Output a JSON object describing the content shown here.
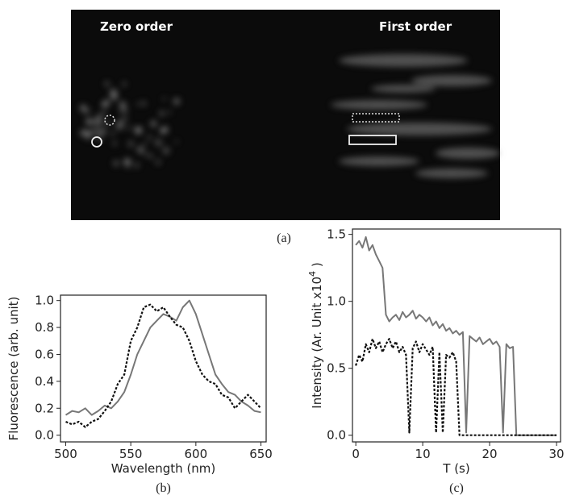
{
  "panel_a": {
    "zero_label": "Zero order",
    "first_label": "First order",
    "caption": "(a)"
  },
  "chart_data": [
    {
      "type": "line",
      "caption": "(b)",
      "xlabel": "Wavelength (nm)",
      "ylabel": "Fluorescence (arb. unit)",
      "xlim": [
        496,
        654
      ],
      "ylim": [
        -0.05,
        1.04
      ],
      "xticks": [
        500,
        550,
        600,
        650
      ],
      "yticks": [
        {
          "value": 0,
          "label": "0.0"
        },
        {
          "value": 0.2,
          "label": "0.2"
        },
        {
          "value": 0.4,
          "label": "0.4"
        },
        {
          "value": 0.6,
          "label": "0.6"
        },
        {
          "value": 0.8,
          "label": "0.8"
        },
        {
          "value": 1.0,
          "label": "1.0"
        }
      ],
      "x": [
        500,
        505,
        510,
        515,
        520,
        525,
        530,
        535,
        540,
        545,
        550,
        555,
        560,
        565,
        570,
        575,
        580,
        585,
        590,
        595,
        600,
        605,
        610,
        615,
        620,
        625,
        630,
        635,
        640,
        645,
        650
      ],
      "series": [
        {
          "color": "#777777",
          "dashed": false,
          "values": [
            0.15,
            0.18,
            0.17,
            0.2,
            0.15,
            0.18,
            0.22,
            0.2,
            0.25,
            0.32,
            0.45,
            0.6,
            0.7,
            0.8,
            0.85,
            0.9,
            0.88,
            0.85,
            0.95,
            1.0,
            0.9,
            0.75,
            0.6,
            0.45,
            0.38,
            0.32,
            0.3,
            0.25,
            0.22,
            0.18,
            0.17
          ]
        },
        {
          "color": "#111111",
          "dashed": true,
          "values": [
            0.1,
            0.08,
            0.1,
            0.06,
            0.1,
            0.12,
            0.18,
            0.25,
            0.38,
            0.45,
            0.7,
            0.8,
            0.95,
            0.97,
            0.92,
            0.95,
            0.88,
            0.82,
            0.8,
            0.7,
            0.55,
            0.45,
            0.4,
            0.38,
            0.3,
            0.28,
            0.2,
            0.25,
            0.3,
            0.25,
            0.2
          ]
        }
      ]
    },
    {
      "type": "line",
      "caption": "(c)",
      "xlabel": "T (s)",
      "ylabel": {
        "text": "Intensity (Ar. Unit x10",
        "superscript": "4",
        "suffix": " )"
      },
      "xlim": [
        -0.5,
        30.6
      ],
      "ylim": [
        -0.05,
        1.54
      ],
      "xticks": [
        0,
        10,
        20,
        30
      ],
      "yticks": [
        {
          "value": 0,
          "label": "0.0"
        },
        {
          "value": 0.5,
          "label": "0.5"
        },
        {
          "value": 1.0,
          "label": "1.0"
        },
        {
          "value": 1.5,
          "label": "1.5"
        }
      ],
      "x": [
        0,
        0.5,
        1,
        1.5,
        2,
        2.5,
        3,
        3.5,
        4,
        4.5,
        5,
        5.5,
        6,
        6.5,
        7,
        7.5,
        8,
        8.5,
        9,
        9.5,
        10,
        10.5,
        11,
        11.5,
        12,
        12.5,
        13,
        13.5,
        14,
        14.5,
        15,
        15.5,
        16,
        16.5,
        17,
        17.5,
        18,
        18.5,
        19,
        19.5,
        20,
        20.5,
        21,
        21.5,
        22,
        22.5,
        23,
        23.5,
        24,
        24.5,
        25,
        25.5,
        26,
        26.5,
        27,
        27.5,
        28,
        28.5,
        29,
        29.5,
        30
      ],
      "series": [
        {
          "color": "#777777",
          "dashed": false,
          "values": [
            1.42,
            1.45,
            1.4,
            1.48,
            1.38,
            1.42,
            1.35,
            1.3,
            1.25,
            0.9,
            0.85,
            0.88,
            0.9,
            0.86,
            0.92,
            0.88,
            0.9,
            0.93,
            0.87,
            0.9,
            0.88,
            0.85,
            0.88,
            0.82,
            0.85,
            0.8,
            0.83,
            0.78,
            0.8,
            0.76,
            0.78,
            0.75,
            0.77,
            0.02,
            0.74,
            0.72,
            0.7,
            0.73,
            0.68,
            0.7,
            0.72,
            0.68,
            0.7,
            0.66,
            0.02,
            0.68,
            0.65,
            0.66,
            0,
            0,
            0,
            0,
            0,
            0,
            0,
            0,
            0,
            0,
            0,
            0,
            0
          ]
        },
        {
          "color": "#111111",
          "dashed": true,
          "values": [
            0.52,
            0.6,
            0.55,
            0.68,
            0.62,
            0.72,
            0.65,
            0.7,
            0.62,
            0.68,
            0.72,
            0.65,
            0.7,
            0.62,
            0.66,
            0.6,
            0.02,
            0.65,
            0.7,
            0.62,
            0.68,
            0.64,
            0.6,
            0.66,
            0.02,
            0.62,
            0.02,
            0.6,
            0.58,
            0.62,
            0.55,
            0,
            0,
            0,
            0,
            0,
            0,
            0,
            0,
            0,
            0,
            0,
            0,
            0,
            0,
            0,
            0,
            0,
            0,
            0,
            0,
            0,
            0,
            0,
            0,
            0,
            0,
            0,
            0,
            0,
            0
          ]
        }
      ]
    }
  ]
}
